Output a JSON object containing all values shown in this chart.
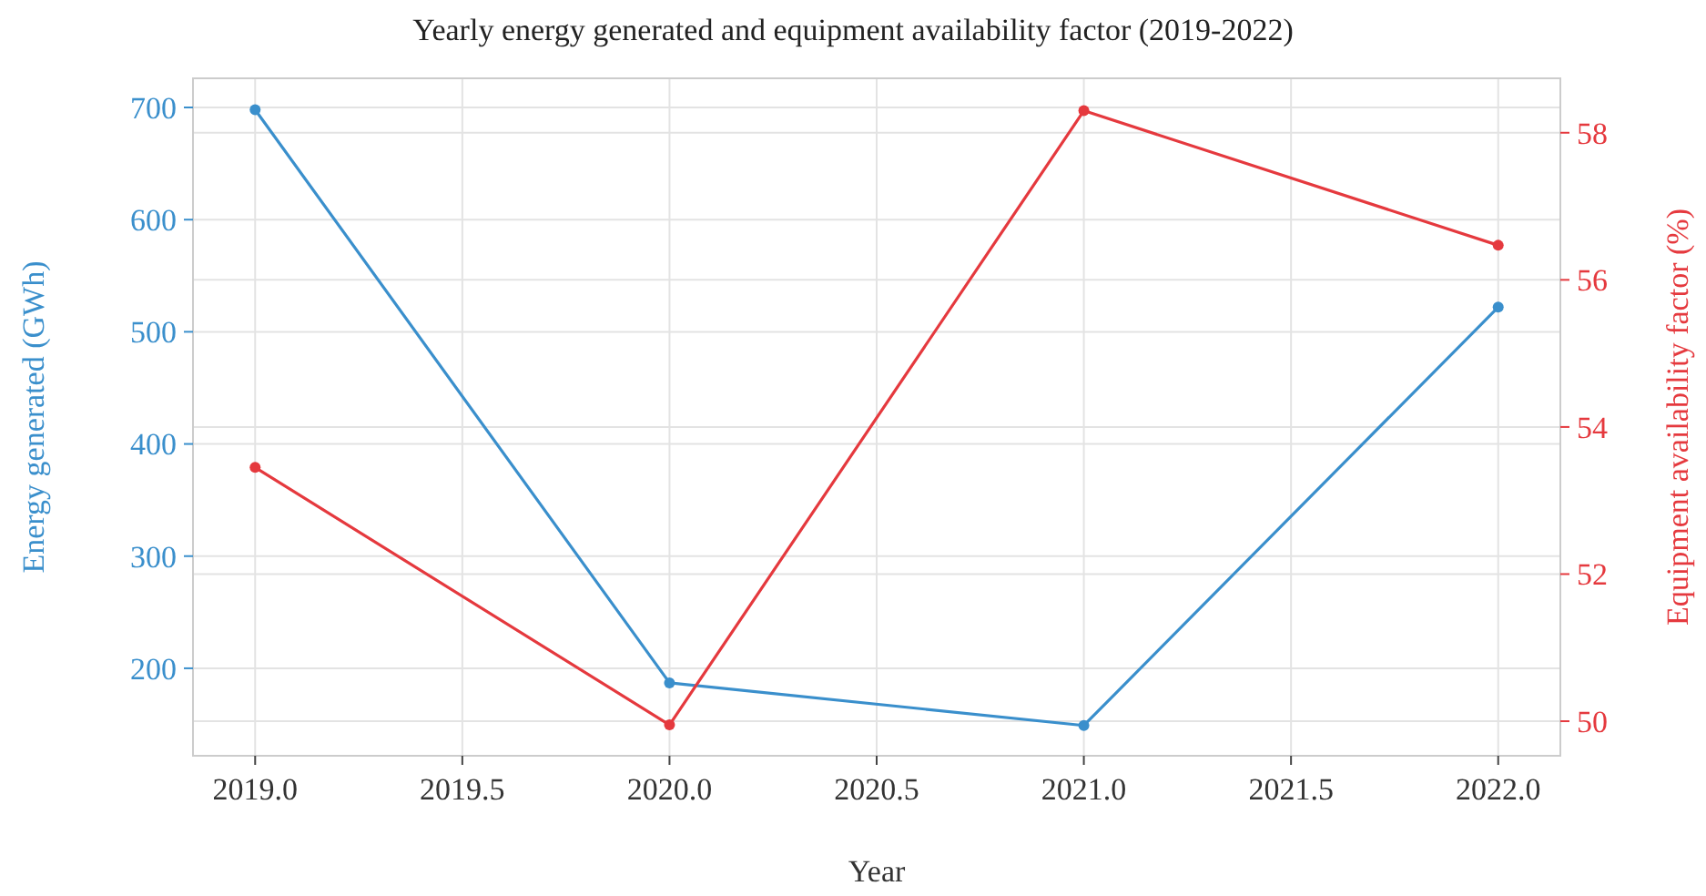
{
  "chart_data": {
    "type": "line",
    "title": "Yearly energy generated and equipment availability factor (2019-2022)",
    "xlabel": "Year",
    "ylabel": "Energy generated (GWh)",
    "y2label": "Equipment availability factor (%)",
    "x": [
      2019,
      2020,
      2021,
      2022
    ],
    "series": [
      {
        "color": "#3a8fcc",
        "values": [
          698,
          187,
          149,
          522
        ]
      },
      {
        "color": "#e5393e",
        "values": [
          53.45,
          49.95,
          58.3,
          56.47
        ],
        "axis": "y2"
      }
    ],
    "xlim": [
      2018.85,
      2022.15
    ],
    "xticks": [
      {
        "value": 2019,
        "label": "2019.0"
      },
      {
        "value": 2019.5,
        "label": "2019.5"
      },
      {
        "value": 2020,
        "label": "2020.0"
      },
      {
        "value": 2020.5,
        "label": "2020.5"
      },
      {
        "value": 2021,
        "label": "2021.0"
      },
      {
        "value": 2021.5,
        "label": "2021.5"
      },
      {
        "value": 2022,
        "label": "2022.0"
      }
    ],
    "ylim": [
      122,
      726
    ],
    "yticks": [
      200,
      300,
      400,
      500,
      600,
      700
    ],
    "y2lim": [
      49.53,
      58.74
    ],
    "y2ticks": [
      50,
      52,
      54,
      56,
      58
    ],
    "grid": true,
    "marker": "circle",
    "line_style": "solid"
  }
}
